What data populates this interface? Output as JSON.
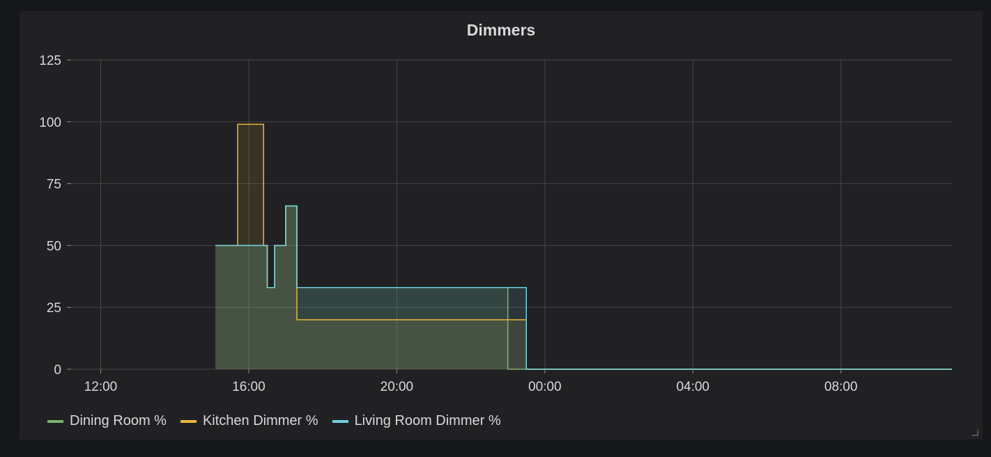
{
  "panel": {
    "title": "Dimmers"
  },
  "chart_data": {
    "type": "area",
    "title": "Dimmers",
    "xlabel": "",
    "ylabel": "",
    "x_ticks": [
      "12:00",
      "16:00",
      "20:00",
      "00:00",
      "04:00",
      "08:00"
    ],
    "x_tick_hours": [
      12,
      16,
      20,
      24,
      28,
      32
    ],
    "xlim_hours": [
      11.2,
      35.0
    ],
    "y_ticks": [
      0,
      25,
      50,
      75,
      100,
      125
    ],
    "ylim": [
      0,
      125
    ],
    "grid": true,
    "legend_position": "bottom-left",
    "series": [
      {
        "name": "Dining Room %",
        "color": "#7eb26d",
        "points": [
          [
            15.1,
            50
          ],
          [
            16.5,
            50
          ],
          [
            16.5,
            33
          ],
          [
            16.7,
            33
          ],
          [
            16.7,
            50
          ],
          [
            17.0,
            50
          ],
          [
            17.0,
            66
          ],
          [
            17.3,
            66
          ],
          [
            17.3,
            33
          ],
          [
            23.0,
            33
          ],
          [
            23.0,
            0
          ],
          [
            35.0,
            0
          ]
        ]
      },
      {
        "name": "Kitchen Dimmer %",
        "color": "#eab839",
        "points": [
          [
            15.1,
            50
          ],
          [
            15.7,
            50
          ],
          [
            15.7,
            99
          ],
          [
            16.4,
            99
          ],
          [
            16.4,
            50
          ],
          [
            16.5,
            50
          ],
          [
            16.5,
            33
          ],
          [
            16.7,
            33
          ],
          [
            16.7,
            50
          ],
          [
            17.0,
            50
          ],
          [
            17.0,
            66
          ],
          [
            17.3,
            66
          ],
          [
            17.3,
            20
          ],
          [
            23.5,
            20
          ],
          [
            23.5,
            0
          ],
          [
            35.0,
            0
          ]
        ]
      },
      {
        "name": "Living Room Dimmer %",
        "color": "#6ed0e0",
        "points": [
          [
            15.1,
            50
          ],
          [
            16.5,
            50
          ],
          [
            16.5,
            33
          ],
          [
            16.7,
            33
          ],
          [
            16.7,
            50
          ],
          [
            17.0,
            50
          ],
          [
            17.0,
            66
          ],
          [
            17.3,
            66
          ],
          [
            17.3,
            33
          ],
          [
            23.5,
            33
          ],
          [
            23.5,
            0
          ],
          [
            35.0,
            0
          ]
        ]
      }
    ]
  }
}
